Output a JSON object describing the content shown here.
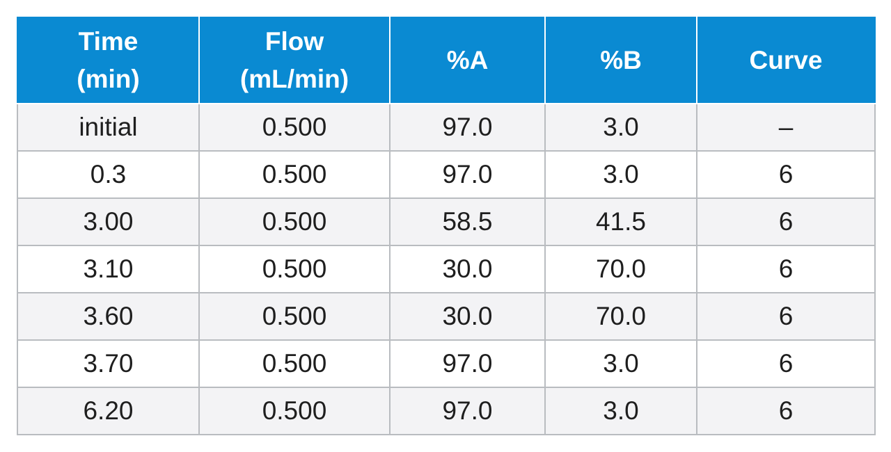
{
  "table": {
    "headers": [
      [
        "Time",
        "(min)"
      ],
      [
        "Flow",
        "(mL/min)"
      ],
      [
        "%A"
      ],
      [
        "%B"
      ],
      [
        "Curve"
      ]
    ],
    "rows": [
      [
        "initial",
        "0.500",
        "97.0",
        "3.0",
        "–"
      ],
      [
        "0.3",
        "0.500",
        "97.0",
        "3.0",
        "6"
      ],
      [
        "3.00",
        "0.500",
        "58.5",
        "41.5",
        "6"
      ],
      [
        "3.10",
        "0.500",
        "30.0",
        "70.0",
        "6"
      ],
      [
        "3.60",
        "0.500",
        "30.0",
        "70.0",
        "6"
      ],
      [
        "3.70",
        "0.500",
        "97.0",
        "3.0",
        "6"
      ],
      [
        "6.20",
        "0.500",
        "97.0",
        "3.0",
        "6"
      ]
    ]
  },
  "colors": {
    "header_background": "#0a8ad2",
    "header_text": "#ffffff",
    "row_odd": "#f3f3f5",
    "row_even": "#ffffff",
    "grid": "#b9bcc0"
  }
}
